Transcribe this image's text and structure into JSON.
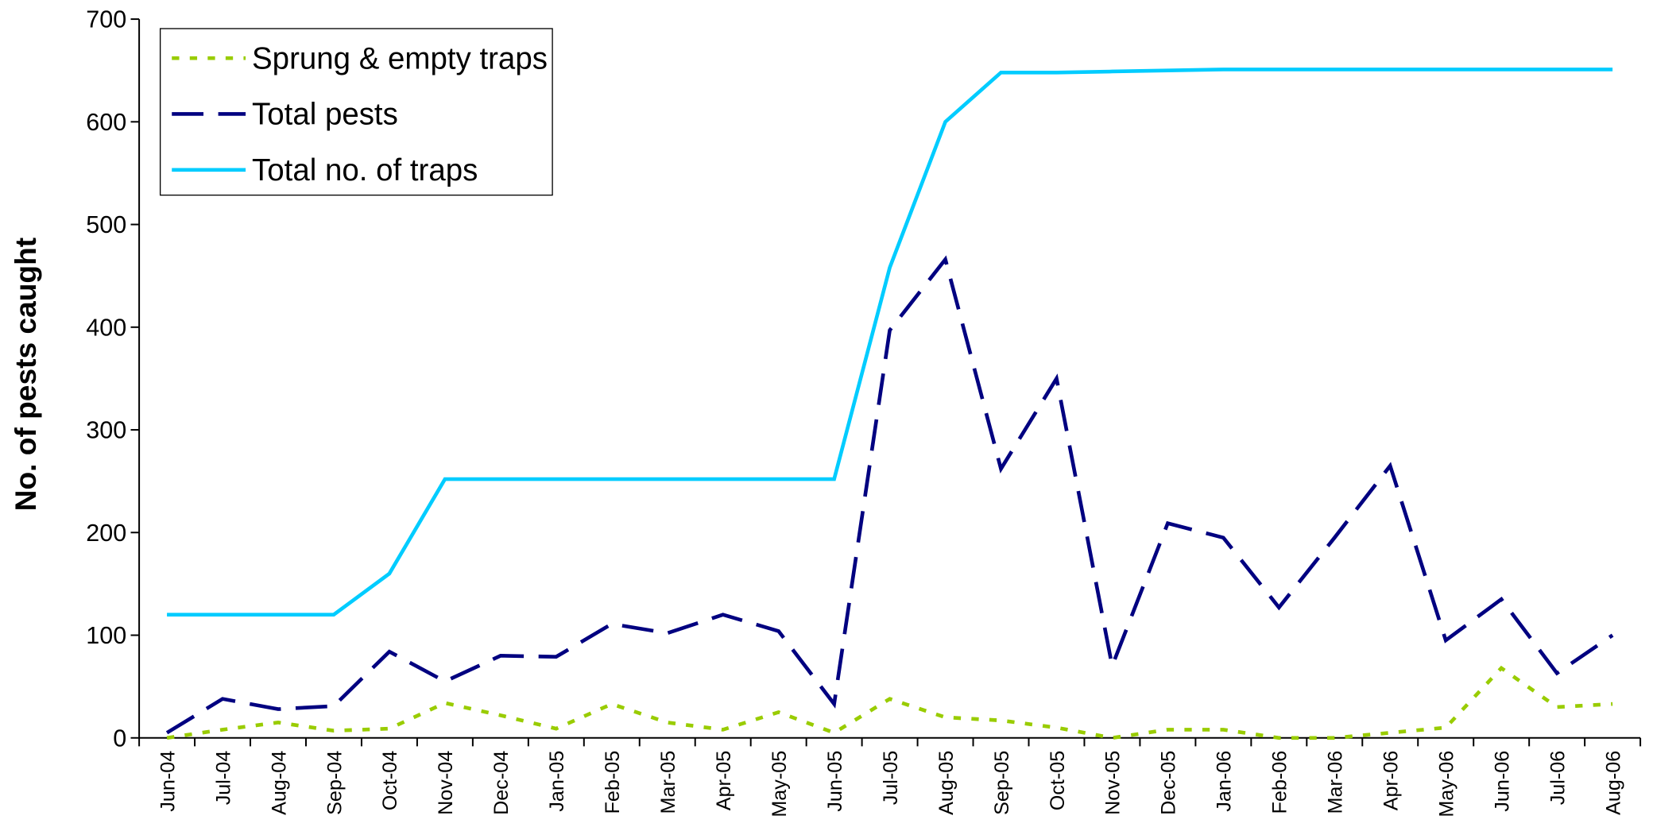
{
  "chart_data": {
    "type": "line",
    "ylabel": "No. of pests caught",
    "categories": [
      "Jun-04",
      "Jul-04",
      "Aug-04",
      "Sep-04",
      "Oct-04",
      "Nov-04",
      "Dec-04",
      "Jan-05",
      "Feb-05",
      "Mar-05",
      "Apr-05",
      "May-05",
      "Jun-05",
      "Jul-05",
      "Aug-05",
      "Sep-05",
      "Oct-05",
      "Nov-05",
      "Dec-05",
      "Jan-06",
      "Feb-06",
      "Mar-06",
      "Apr-06",
      "May-06",
      "Jun-06",
      "Jul-06",
      "Aug-06"
    ],
    "series": [
      {
        "name": "Sprung & empty traps",
        "color": "#99cc00",
        "dash": "dotted",
        "values": [
          0,
          8,
          15,
          7,
          9,
          34,
          22,
          9,
          33,
          15,
          8,
          25,
          5,
          38,
          20,
          17,
          10,
          0,
          8,
          8,
          0,
          0,
          5,
          10,
          68,
          30,
          33
        ]
      },
      {
        "name": "Total pests",
        "color": "#000080",
        "dash": "dashed",
        "values": [
          5,
          38,
          28,
          31,
          84,
          55,
          80,
          79,
          111,
          102,
          120,
          104,
          33,
          397,
          466,
          262,
          350,
          70,
          209,
          195,
          127,
          195,
          265,
          95,
          135,
          63,
          100
        ]
      },
      {
        "name": "Total no. of traps",
        "color": "#00ccff",
        "dash": "solid",
        "values": [
          120,
          120,
          120,
          120,
          160,
          252,
          252,
          252,
          252,
          252,
          252,
          252,
          252,
          458,
          600,
          648,
          648,
          649,
          650,
          651,
          651,
          651,
          651,
          651,
          651,
          651,
          651
        ]
      }
    ],
    "ylim": [
      0,
      700
    ],
    "yticks": [
      0,
      100,
      200,
      300,
      400,
      500,
      600,
      700
    ],
    "grid": false,
    "legend": "top-left"
  }
}
